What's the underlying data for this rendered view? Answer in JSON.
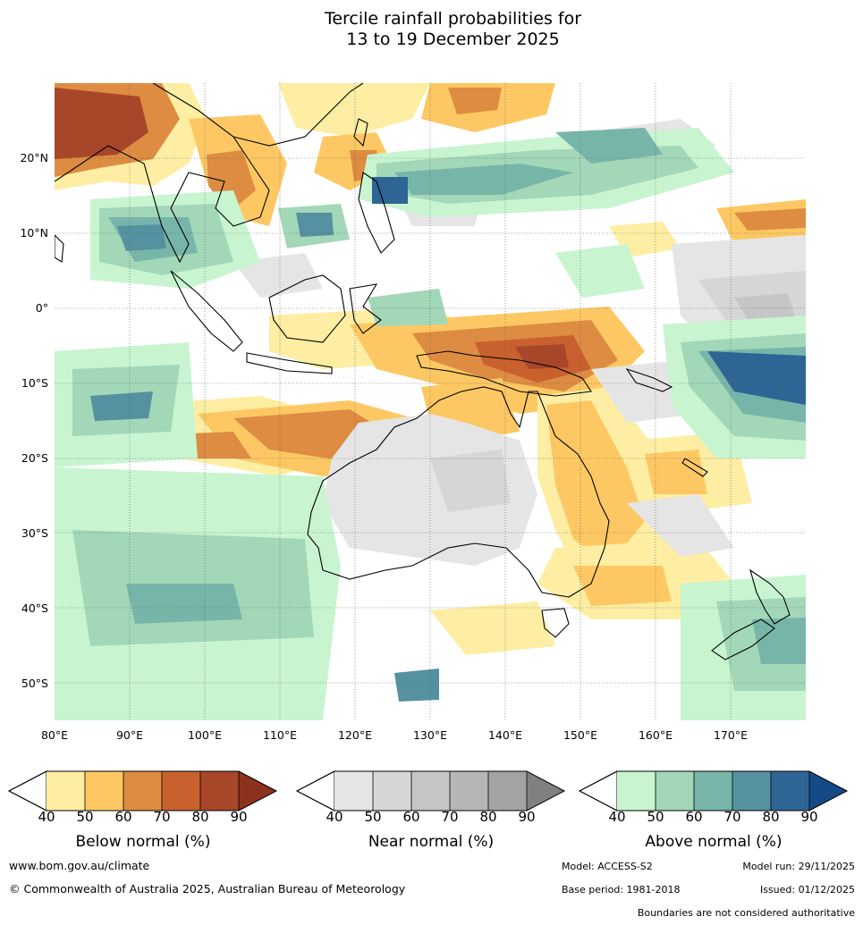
{
  "title": {
    "line1": "Tercile rainfall probabilities for",
    "line2": "13 to 19 December 2025"
  },
  "map": {
    "lat_labels": [
      "20°N",
      "10°N",
      "0°",
      "10°S",
      "20°S",
      "30°S",
      "40°S",
      "50°S"
    ],
    "lon_labels": [
      "80°E",
      "90°E",
      "100°E",
      "110°E",
      "120°E",
      "130°E",
      "140°E",
      "150°E",
      "160°E",
      "170°E"
    ]
  },
  "legend": {
    "below": {
      "label": "Below normal (%)",
      "ticks": [
        "40",
        "50",
        "60",
        "70",
        "80",
        "90"
      ],
      "colors": [
        "#fdeea3",
        "#fdc863",
        "#dd8c42",
        "#c9612e",
        "#a8462a",
        "#8b321e"
      ]
    },
    "near": {
      "label": "Near normal (%)",
      "ticks": [
        "40",
        "50",
        "60",
        "70",
        "80",
        "90"
      ],
      "colors": [
        "#e5e5e5",
        "#d6d6d6",
        "#c6c6c6",
        "#b6b6b6",
        "#a3a3a3",
        "#808080"
      ]
    },
    "above": {
      "label": "Above normal (%)",
      "ticks": [
        "40",
        "50",
        "60",
        "70",
        "80",
        "90"
      ],
      "colors": [
        "#c8f5d0",
        "#a2d7b8",
        "#78b5a9",
        "#5591a0",
        "#2f6595",
        "#144a85"
      ]
    }
  },
  "footer": {
    "website": "www.bom.gov.au/climate",
    "copyright": "© Commonwealth of Australia 2025, Australian Bureau of Meteorology",
    "model": "Model: ACCESS-S2",
    "model_run": "Model run: 29/11/2025",
    "base_period": "Base period: 1981-2018",
    "issued": "Issued: 01/12/2025",
    "disclaimer": "Boundaries are not considered authoritative"
  }
}
